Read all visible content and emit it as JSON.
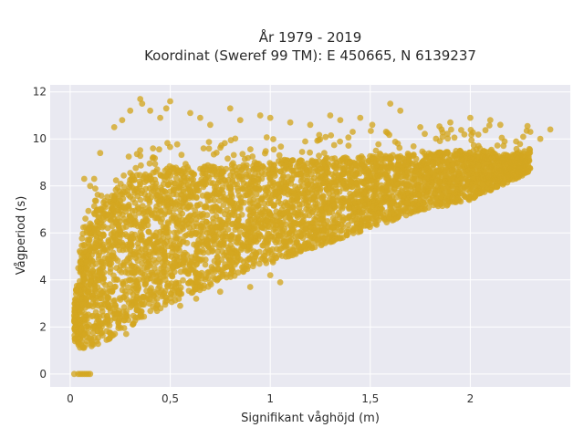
{
  "chart_data": {
    "type": "scatter",
    "title_line1": "År 1979 - 2019",
    "title_line2": "Koordinat (Sweref 99 TM): E 450665, N 6139237",
    "xlabel": "Signifikant våghöjd (m)",
    "ylabel": "Vågperiod (s)",
    "xlim": [
      -0.1,
      2.5
    ],
    "ylim": [
      -0.55,
      12.3
    ],
    "x_ticks": [
      {
        "value": 0,
        "label": "0"
      },
      {
        "value": 0.5,
        "label": "0,5"
      },
      {
        "value": 1,
        "label": "1"
      },
      {
        "value": 1.5,
        "label": "1,5"
      },
      {
        "value": 2,
        "label": "2"
      }
    ],
    "y_ticks": [
      {
        "value": 0,
        "label": "0"
      },
      {
        "value": 2,
        "label": "2"
      },
      {
        "value": 4,
        "label": "4"
      },
      {
        "value": 6,
        "label": "6"
      },
      {
        "value": 8,
        "label": "8"
      },
      {
        "value": 10,
        "label": "10"
      },
      {
        "value": 12,
        "label": "12"
      }
    ],
    "grid": true,
    "background_color": "#e9e9f1",
    "marker_color": "#d4a620",
    "dense_band": [
      {
        "x": 0.02,
        "ymin": 1.4,
        "ymax": 3.2
      },
      {
        "x": 0.05,
        "ymin": 1.1,
        "ymax": 4.8
      },
      {
        "x": 0.08,
        "ymin": 1.1,
        "ymax": 6.0
      },
      {
        "x": 0.12,
        "ymin": 1.2,
        "ymax": 7.0
      },
      {
        "x": 0.2,
        "ymin": 1.5,
        "ymax": 7.8
      },
      {
        "x": 0.3,
        "ymin": 2.0,
        "ymax": 8.4
      },
      {
        "x": 0.4,
        "ymin": 2.5,
        "ymax": 8.6
      },
      {
        "x": 0.5,
        "ymin": 3.0,
        "ymax": 8.8
      },
      {
        "x": 0.6,
        "ymin": 3.4,
        "ymax": 8.8
      },
      {
        "x": 0.7,
        "ymin": 3.7,
        "ymax": 8.9
      },
      {
        "x": 0.8,
        "ymin": 4.1,
        "ymax": 8.9
      },
      {
        "x": 0.9,
        "ymin": 4.4,
        "ymax": 9.0
      },
      {
        "x": 1.0,
        "ymin": 4.7,
        "ymax": 9.1
      },
      {
        "x": 1.1,
        "ymin": 5.0,
        "ymax": 9.1
      },
      {
        "x": 1.2,
        "ymin": 5.3,
        "ymax": 9.1
      },
      {
        "x": 1.3,
        "ymin": 5.6,
        "ymax": 9.2
      },
      {
        "x": 1.4,
        "ymin": 5.9,
        "ymax": 9.2
      },
      {
        "x": 1.5,
        "ymin": 6.2,
        "ymax": 9.3
      },
      {
        "x": 1.6,
        "ymin": 6.5,
        "ymax": 9.3
      },
      {
        "x": 1.7,
        "ymin": 6.8,
        "ymax": 9.4
      },
      {
        "x": 1.8,
        "ymin": 7.0,
        "ymax": 9.4
      },
      {
        "x": 1.9,
        "ymin": 7.2,
        "ymax": 9.5
      },
      {
        "x": 2.0,
        "ymin": 7.4,
        "ymax": 9.5
      },
      {
        "x": 2.1,
        "ymin": 7.8,
        "ymax": 9.5
      },
      {
        "x": 2.2,
        "ymin": 8.2,
        "ymax": 9.3
      },
      {
        "x": 2.3,
        "ymin": 8.6,
        "ymax": 9.6
      }
    ],
    "zero_period_points": [
      {
        "x": 0.02,
        "y": 0
      },
      {
        "x": 0.04,
        "y": 0
      },
      {
        "x": 0.05,
        "y": 0
      },
      {
        "x": 0.06,
        "y": 0
      },
      {
        "x": 0.07,
        "y": 0
      },
      {
        "x": 0.08,
        "y": 0
      },
      {
        "x": 0.09,
        "y": 0
      },
      {
        "x": 0.1,
        "y": 0
      }
    ],
    "outlier_points": [
      {
        "x": 0.35,
        "y": 11.7
      },
      {
        "x": 0.36,
        "y": 11.5
      },
      {
        "x": 0.5,
        "y": 11.6
      },
      {
        "x": 0.48,
        "y": 11.3
      },
      {
        "x": 0.4,
        "y": 11.2
      },
      {
        "x": 0.3,
        "y": 11.2
      },
      {
        "x": 0.22,
        "y": 10.5
      },
      {
        "x": 0.26,
        "y": 10.8
      },
      {
        "x": 0.6,
        "y": 11.1
      },
      {
        "x": 0.65,
        "y": 10.9
      },
      {
        "x": 0.8,
        "y": 11.3
      },
      {
        "x": 0.85,
        "y": 10.8
      },
      {
        "x": 1.0,
        "y": 10.9
      },
      {
        "x": 1.1,
        "y": 10.7
      },
      {
        "x": 1.3,
        "y": 11.0
      },
      {
        "x": 1.35,
        "y": 10.8
      },
      {
        "x": 1.45,
        "y": 10.9
      },
      {
        "x": 1.51,
        "y": 10.6
      },
      {
        "x": 1.6,
        "y": 11.5
      },
      {
        "x": 1.65,
        "y": 11.2
      },
      {
        "x": 1.9,
        "y": 10.7
      },
      {
        "x": 2.0,
        "y": 10.9
      },
      {
        "x": 2.1,
        "y": 10.8
      },
      {
        "x": 2.15,
        "y": 10.6
      },
      {
        "x": 1.75,
        "y": 10.5
      },
      {
        "x": 1.2,
        "y": 10.6
      },
      {
        "x": 0.7,
        "y": 10.6
      },
      {
        "x": 0.95,
        "y": 11.0
      },
      {
        "x": 0.45,
        "y": 10.9
      },
      {
        "x": 2.3,
        "y": 10.3
      },
      {
        "x": 2.4,
        "y": 10.4
      },
      {
        "x": 2.35,
        "y": 10.0
      },
      {
        "x": 0.15,
        "y": 9.4
      },
      {
        "x": 0.12,
        "y": 8.3
      },
      {
        "x": 0.07,
        "y": 8.3
      },
      {
        "x": 0.1,
        "y": 8.0
      },
      {
        "x": 0.9,
        "y": 3.7
      },
      {
        "x": 1.0,
        "y": 4.2
      },
      {
        "x": 0.55,
        "y": 2.9
      },
      {
        "x": 0.63,
        "y": 3.2
      },
      {
        "x": 0.28,
        "y": 1.7
      },
      {
        "x": 0.34,
        "y": 2.4
      },
      {
        "x": 0.75,
        "y": 3.5
      },
      {
        "x": 1.05,
        "y": 3.9
      }
    ]
  }
}
